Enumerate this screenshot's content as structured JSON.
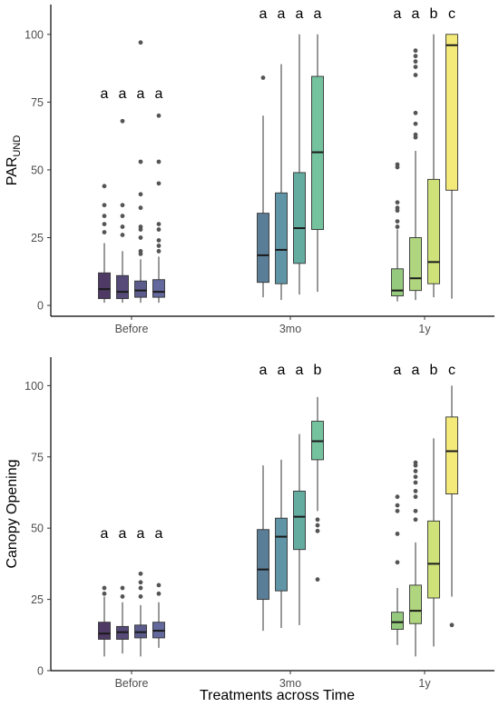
{
  "colors": {
    "before": [
      "#4f3a66",
      "#554a78",
      "#5b5c8b",
      "#63699c"
    ],
    "mo3": [
      "#5b7e98",
      "#5f95a6",
      "#65aca0",
      "#75c39e"
    ],
    "y1": [
      "#94c97e",
      "#b0d57f",
      "#cfe27a",
      "#f3ea7a"
    ]
  },
  "chart_data": [
    {
      "type": "box",
      "xlabel": "",
      "ylabel_main": "PAR",
      "ylabel_sub": "UND",
      "ylim": [
        -4,
        111
      ],
      "yticks": [
        0,
        25,
        50,
        75,
        100
      ],
      "categories": [
        "Before",
        "3mo",
        "1y"
      ],
      "groups": [
        {
          "category": "Before",
          "boxes": [
            {
              "letter": "a",
              "whislo": 1,
              "q1": 2.5,
              "med": 6,
              "q3": 12,
              "whishi": 23,
              "fliers": [
                27,
                30,
                33,
                37,
                44
              ]
            },
            {
              "letter": "a",
              "whislo": 1,
              "q1": 2.5,
              "med": 5,
              "q3": 11,
              "whishi": 20,
              "fliers": [
                26,
                29,
                33,
                37,
                68
              ]
            },
            {
              "letter": "a",
              "whislo": 1,
              "q1": 3,
              "med": 5.5,
              "q3": 9,
              "whishi": 17,
              "fliers": [
                19,
                20,
                25,
                28,
                29,
                36,
                41,
                53,
                97
              ]
            },
            {
              "letter": "a",
              "whislo": 1,
              "q1": 3,
              "med": 5,
              "q3": 9.5,
              "whishi": 18,
              "fliers": [
                20,
                22,
                24,
                28,
                30,
                45,
                53,
                70
              ]
            }
          ]
        },
        {
          "category": "3mo",
          "boxes": [
            {
              "letter": "a",
              "whislo": 3,
              "q1": 8.5,
              "med": 18.5,
              "q3": 34,
              "whishi": 70,
              "fliers": [
                84
              ]
            },
            {
              "letter": "a",
              "whislo": 2,
              "q1": 8,
              "med": 20.5,
              "q3": 41.5,
              "whishi": 89,
              "fliers": []
            },
            {
              "letter": "a",
              "whislo": 4,
              "q1": 15.5,
              "med": 28.5,
              "q3": 49,
              "whishi": 100,
              "fliers": []
            },
            {
              "letter": "a",
              "whislo": 5,
              "q1": 28,
              "med": 56.5,
              "q3": 84.5,
              "whishi": 100,
              "fliers": []
            }
          ]
        },
        {
          "category": "1y",
          "boxes": [
            {
              "letter": "a",
              "whislo": 1.5,
              "q1": 3.5,
              "med": 5.5,
              "q3": 13.5,
              "whishi": 28,
              "fliers": [
                29,
                31,
                35,
                36,
                38,
                51,
                52
              ]
            },
            {
              "letter": "a",
              "whislo": 2,
              "q1": 5.5,
              "med": 10,
              "q3": 25,
              "whishi": 57,
              "fliers": [
                62,
                63,
                67,
                71,
                85,
                88,
                90,
                92,
                94
              ]
            },
            {
              "letter": "b",
              "whislo": 3,
              "q1": 8,
              "med": 16,
              "q3": 46.5,
              "whishi": 100,
              "fliers": []
            },
            {
              "letter": "c",
              "whislo": 2.5,
              "q1": 42.5,
              "med": 96,
              "q3": 100,
              "whishi": 100,
              "fliers": []
            }
          ]
        }
      ]
    },
    {
      "type": "box",
      "xlabel": "Treatments across Time",
      "ylabel_main": "Canopy Opening",
      "ylabel_sub": "",
      "ylim": [
        0,
        110
      ],
      "yticks": [
        0,
        25,
        50,
        75,
        100
      ],
      "categories": [
        "Before",
        "3mo",
        "1y"
      ],
      "groups": [
        {
          "category": "Before",
          "boxes": [
            {
              "letter": "a",
              "whislo": 5,
              "q1": 11,
              "med": 13,
              "q3": 17,
              "whishi": 26,
              "fliers": [
                27,
                29
              ]
            },
            {
              "letter": "a",
              "whislo": 6,
              "q1": 11,
              "med": 13.5,
              "q3": 15.5,
              "whishi": 24,
              "fliers": [
                26,
                29
              ]
            },
            {
              "letter": "a",
              "whislo": 5,
              "q1": 11.5,
              "med": 13.5,
              "q3": 16,
              "whishi": 23,
              "fliers": [
                26,
                29,
                31,
                34
              ]
            },
            {
              "letter": "a",
              "whislo": 8,
              "q1": 11.5,
              "med": 14,
              "q3": 17,
              "whishi": 24,
              "fliers": [
                27,
                30
              ]
            }
          ]
        },
        {
          "category": "3mo",
          "boxes": [
            {
              "letter": "a",
              "whislo": 14,
              "q1": 25,
              "med": 35.5,
              "q3": 49.5,
              "whishi": 72,
              "fliers": []
            },
            {
              "letter": "a",
              "whislo": 15,
              "q1": 28,
              "med": 47,
              "q3": 53.5,
              "whishi": 74,
              "fliers": []
            },
            {
              "letter": "a",
              "whislo": 16,
              "q1": 42.5,
              "med": 54,
              "q3": 63,
              "whishi": 83,
              "fliers": []
            },
            {
              "letter": "b",
              "whislo": 56,
              "q1": 74,
              "med": 80.5,
              "q3": 87.5,
              "whishi": 96,
              "fliers": [
                32,
                49,
                51,
                53
              ]
            }
          ]
        },
        {
          "category": "1y",
          "boxes": [
            {
              "letter": "a",
              "whislo": 9,
              "q1": 14.5,
              "med": 17,
              "q3": 20.5,
              "whishi": 29,
              "fliers": [
                38,
                48,
                56,
                58,
                61
              ]
            },
            {
              "letter": "a",
              "whislo": 5,
              "q1": 16.5,
              "med": 21,
              "q3": 30,
              "whishi": 45,
              "fliers": [
                53,
                56,
                61,
                63,
                66,
                68,
                70,
                72,
                73
              ]
            },
            {
              "letter": "b",
              "whislo": 8.5,
              "q1": 25.5,
              "med": 37.5,
              "q3": 52.5,
              "whishi": 81.5,
              "fliers": []
            },
            {
              "letter": "c",
              "whislo": 26,
              "q1": 62,
              "med": 77,
              "q3": 89,
              "whishi": 100,
              "fliers": [
                16
              ]
            }
          ]
        }
      ]
    }
  ]
}
